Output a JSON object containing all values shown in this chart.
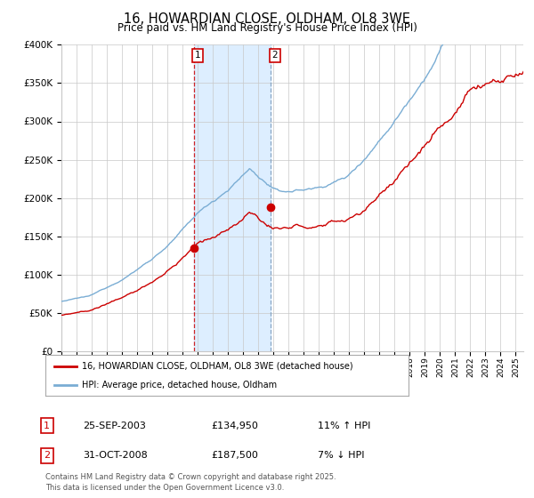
{
  "title_line1": "16, HOWARDIAN CLOSE, OLDHAM, OL8 3WE",
  "title_line2": "Price paid vs. HM Land Registry's House Price Index (HPI)",
  "legend_label_red": "16, HOWARDIAN CLOSE, OLDHAM, OL8 3WE (detached house)",
  "legend_label_blue": "HPI: Average price, detached house, Oldham",
  "transaction1_date": "25-SEP-2003",
  "transaction1_price": 134950,
  "transaction1_price_str": "£134,950",
  "transaction1_hpi": "11% ↑ HPI",
  "transaction2_date": "31-OCT-2008",
  "transaction2_price": 187500,
  "transaction2_price_str": "£187,500",
  "transaction2_hpi": "7% ↓ HPI",
  "footer": "Contains HM Land Registry data © Crown copyright and database right 2025.\nThis data is licensed under the Open Government Licence v3.0.",
  "x_start_year": 1995,
  "x_end_year": 2025,
  "y_min": 0,
  "y_max": 400000,
  "transaction1_year": 2003.73,
  "transaction2_year": 2008.83,
  "background_color": "#ffffff",
  "grid_color": "#c8c8c8",
  "red_line_color": "#cc0000",
  "blue_line_color": "#7aadd4",
  "marker_color": "#cc0000",
  "vline1_color": "#cc0000",
  "vline2_color": "#7799bb",
  "shade_color": "#ddeeff",
  "box_color": "#cc0000"
}
